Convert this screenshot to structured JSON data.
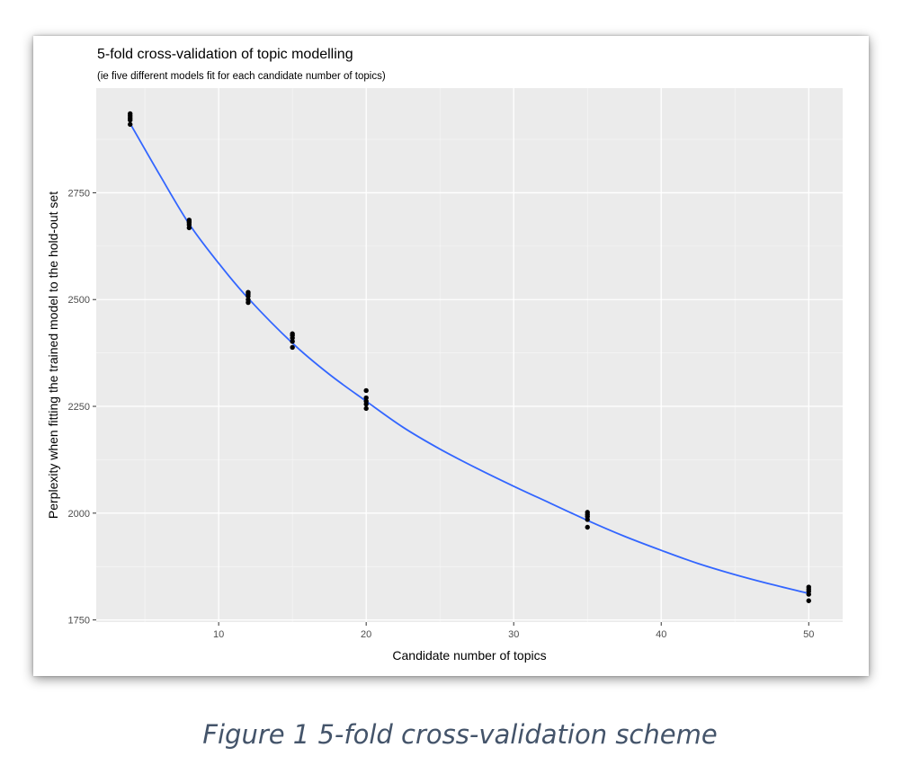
{
  "chart_data": {
    "type": "scatter",
    "title": "5-fold cross-validation of topic modelling",
    "subtitle": "(ie five different models fit for each candidate number of topics)",
    "xlabel": "Candidate number of topics",
    "ylabel": "Perplexity when fitting the trained model to the hold-out set",
    "xlim": [
      1.7,
      52.3
    ],
    "ylim": [
      1745,
      2995
    ],
    "x_ticks": [
      10,
      20,
      30,
      40,
      50
    ],
    "x_minor_ticks": [
      5,
      15,
      25,
      35,
      45
    ],
    "y_ticks": [
      1750,
      2000,
      2250,
      2500,
      2750
    ],
    "y_minor_ticks": [
      1875,
      2125,
      2375,
      2625,
      2875
    ],
    "grid": true,
    "background": "#ebebeb",
    "point_color": "#000000",
    "line_color": "#3366ff",
    "points": [
      {
        "x": 4,
        "y": 2910
      },
      {
        "x": 4,
        "y": 2920
      },
      {
        "x": 4,
        "y": 2925
      },
      {
        "x": 4,
        "y": 2930
      },
      {
        "x": 4,
        "y": 2935
      },
      {
        "x": 8,
        "y": 2668
      },
      {
        "x": 8,
        "y": 2675
      },
      {
        "x": 8,
        "y": 2680
      },
      {
        "x": 8,
        "y": 2683
      },
      {
        "x": 8,
        "y": 2686
      },
      {
        "x": 12,
        "y": 2493
      },
      {
        "x": 12,
        "y": 2500
      },
      {
        "x": 12,
        "y": 2508
      },
      {
        "x": 12,
        "y": 2513
      },
      {
        "x": 12,
        "y": 2517
      },
      {
        "x": 15,
        "y": 2388
      },
      {
        "x": 15,
        "y": 2402
      },
      {
        "x": 15,
        "y": 2410
      },
      {
        "x": 15,
        "y": 2416
      },
      {
        "x": 15,
        "y": 2420
      },
      {
        "x": 20,
        "y": 2245
      },
      {
        "x": 20,
        "y": 2255
      },
      {
        "x": 20,
        "y": 2262
      },
      {
        "x": 20,
        "y": 2270
      },
      {
        "x": 20,
        "y": 2287
      },
      {
        "x": 35,
        "y": 1967
      },
      {
        "x": 35,
        "y": 1985
      },
      {
        "x": 35,
        "y": 1992
      },
      {
        "x": 35,
        "y": 1997
      },
      {
        "x": 35,
        "y": 2002
      },
      {
        "x": 50,
        "y": 1795
      },
      {
        "x": 50,
        "y": 1810
      },
      {
        "x": 50,
        "y": 1817
      },
      {
        "x": 50,
        "y": 1822
      },
      {
        "x": 50,
        "y": 1827
      }
    ],
    "smooth_line": [
      {
        "x": 4,
        "y": 2912
      },
      {
        "x": 6,
        "y": 2792
      },
      {
        "x": 8,
        "y": 2677
      },
      {
        "x": 10,
        "y": 2585
      },
      {
        "x": 12,
        "y": 2503
      },
      {
        "x": 15,
        "y": 2398
      },
      {
        "x": 17.5,
        "y": 2325
      },
      {
        "x": 20,
        "y": 2262
      },
      {
        "x": 22.5,
        "y": 2201
      },
      {
        "x": 25,
        "y": 2150
      },
      {
        "x": 27.5,
        "y": 2105
      },
      {
        "x": 30,
        "y": 2063
      },
      {
        "x": 32.5,
        "y": 2023
      },
      {
        "x": 35,
        "y": 1983
      },
      {
        "x": 37.5,
        "y": 1946
      },
      {
        "x": 40,
        "y": 1913
      },
      {
        "x": 42.5,
        "y": 1882
      },
      {
        "x": 45,
        "y": 1856
      },
      {
        "x": 47.5,
        "y": 1833
      },
      {
        "x": 50,
        "y": 1812
      }
    ]
  },
  "caption": "Figure 1 5-fold cross-validation scheme"
}
